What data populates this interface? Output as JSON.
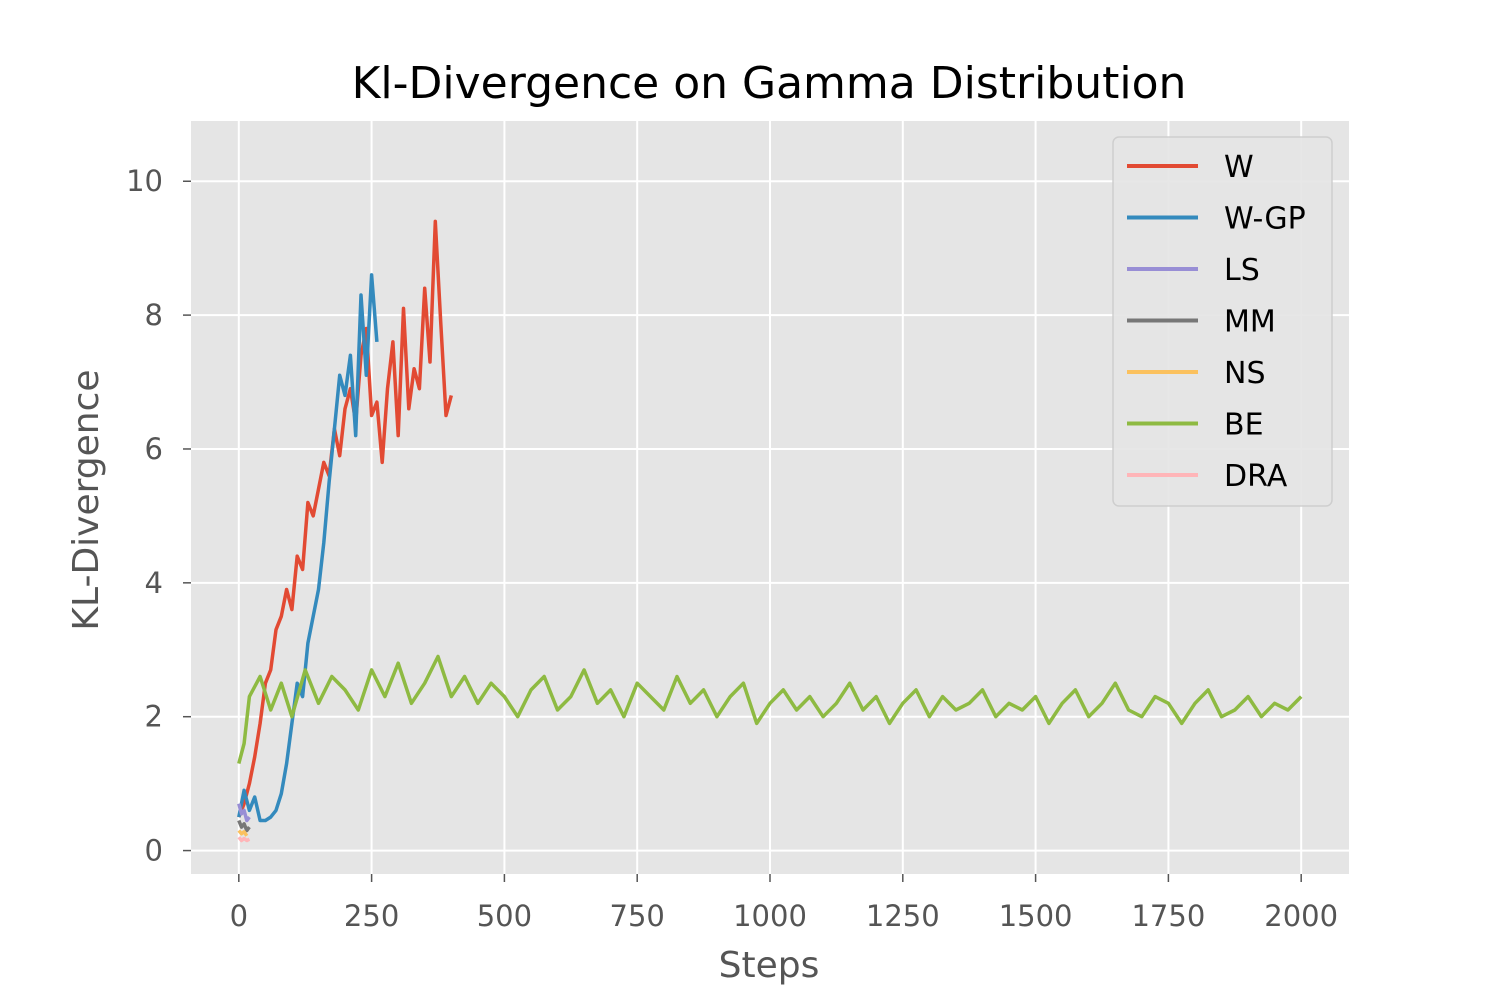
{
  "chart_data": {
    "type": "line",
    "title": "Kl-Divergence on Gamma Distribution",
    "xlabel": "Steps",
    "ylabel": "KL-Divergence",
    "xlim": [
      -90,
      2090
    ],
    "ylim": [
      -0.35,
      10.9
    ],
    "xticks": [
      0,
      250,
      500,
      750,
      1000,
      1250,
      1500,
      1750,
      2000
    ],
    "xtick_labels": [
      "0",
      "250",
      "500",
      "750",
      "1000",
      "1250",
      "1500",
      "1750",
      "2000"
    ],
    "yticks": [
      0,
      2,
      4,
      6,
      8,
      10
    ],
    "ytick_labels": [
      "0",
      "2",
      "4",
      "6",
      "8",
      "10"
    ],
    "grid": true,
    "background": "#e5e5e5",
    "legend_position": "upper-right",
    "series": [
      {
        "name": "W",
        "color": "#e24a33",
        "x": [
          0,
          10,
          20,
          30,
          40,
          50,
          60,
          70,
          80,
          90,
          100,
          110,
          120,
          130,
          140,
          150,
          160,
          170,
          180,
          190,
          200,
          210,
          220,
          230,
          240,
          250,
          260,
          270,
          280,
          290,
          300,
          310,
          320,
          330,
          340,
          350,
          360,
          370,
          380,
          390,
          400
        ],
        "y": [
          0.5,
          0.7,
          1.0,
          1.4,
          1.9,
          2.5,
          2.7,
          3.3,
          3.5,
          3.9,
          3.6,
          4.4,
          4.2,
          5.2,
          5.0,
          5.4,
          5.8,
          5.6,
          6.3,
          5.9,
          6.6,
          6.9,
          6.4,
          7.4,
          7.8,
          6.5,
          6.7,
          5.8,
          6.9,
          7.6,
          6.2,
          8.1,
          6.6,
          7.2,
          6.9,
          8.4,
          7.3,
          9.4,
          7.9,
          6.5,
          6.8
        ]
      },
      {
        "name": "W-GP",
        "color": "#348abd",
        "x": [
          0,
          10,
          20,
          30,
          40,
          50,
          60,
          70,
          80,
          90,
          100,
          110,
          120,
          130,
          140,
          150,
          160,
          170,
          180,
          190,
          200,
          210,
          220,
          230,
          240,
          250,
          260
        ],
        "y": [
          0.5,
          0.9,
          0.6,
          0.8,
          0.45,
          0.45,
          0.5,
          0.6,
          0.85,
          1.3,
          1.9,
          2.5,
          2.3,
          3.1,
          3.5,
          3.9,
          4.6,
          5.5,
          6.3,
          7.1,
          6.8,
          7.4,
          6.2,
          8.3,
          7.1,
          8.6,
          7.6
        ]
      },
      {
        "name": "LS",
        "color": "#988ed5",
        "x": [
          0,
          5,
          10,
          15,
          20
        ],
        "y": [
          0.7,
          0.55,
          0.6,
          0.45,
          0.5
        ]
      },
      {
        "name": "MM",
        "color": "#777777",
        "x": [
          0,
          5,
          10,
          15,
          20
        ],
        "y": [
          0.45,
          0.35,
          0.4,
          0.3,
          0.35
        ]
      },
      {
        "name": "NS",
        "color": "#fbc15e",
        "x": [
          0,
          5,
          10,
          15
        ],
        "y": [
          0.3,
          0.25,
          0.28,
          0.22
        ]
      },
      {
        "name": "BE",
        "color": "#8eba42",
        "x": [
          0,
          10,
          20,
          40,
          60,
          80,
          100,
          125,
          150,
          175,
          200,
          225,
          250,
          275,
          300,
          325,
          350,
          375,
          400,
          425,
          450,
          475,
          500,
          525,
          550,
          575,
          600,
          625,
          650,
          675,
          700,
          725,
          750,
          775,
          800,
          825,
          850,
          875,
          900,
          925,
          950,
          975,
          1000,
          1025,
          1050,
          1075,
          1100,
          1125,
          1150,
          1175,
          1200,
          1225,
          1250,
          1275,
          1300,
          1325,
          1350,
          1375,
          1400,
          1425,
          1450,
          1475,
          1500,
          1525,
          1550,
          1575,
          1600,
          1625,
          1650,
          1675,
          1700,
          1725,
          1750,
          1775,
          1800,
          1825,
          1850,
          1875,
          1900,
          1925,
          1950,
          1975,
          2000
        ],
        "y": [
          1.3,
          1.6,
          2.3,
          2.6,
          2.1,
          2.5,
          2.0,
          2.7,
          2.2,
          2.6,
          2.4,
          2.1,
          2.7,
          2.3,
          2.8,
          2.2,
          2.5,
          2.9,
          2.3,
          2.6,
          2.2,
          2.5,
          2.3,
          2.0,
          2.4,
          2.6,
          2.1,
          2.3,
          2.7,
          2.2,
          2.4,
          2.0,
          2.5,
          2.3,
          2.1,
          2.6,
          2.2,
          2.4,
          2.0,
          2.3,
          2.5,
          1.9,
          2.2,
          2.4,
          2.1,
          2.3,
          2.0,
          2.2,
          2.5,
          2.1,
          2.3,
          1.9,
          2.2,
          2.4,
          2.0,
          2.3,
          2.1,
          2.2,
          2.4,
          2.0,
          2.2,
          2.1,
          2.3,
          1.9,
          2.2,
          2.4,
          2.0,
          2.2,
          2.5,
          2.1,
          2.0,
          2.3,
          2.2,
          1.9,
          2.2,
          2.4,
          2.0,
          2.1,
          2.3,
          2.0,
          2.2,
          2.1,
          2.3
        ]
      },
      {
        "name": "DRA",
        "color": "#ffb5b8",
        "x": [
          0,
          5,
          10,
          15,
          20
        ],
        "y": [
          0.2,
          0.15,
          0.18,
          0.15,
          0.17
        ]
      }
    ]
  }
}
